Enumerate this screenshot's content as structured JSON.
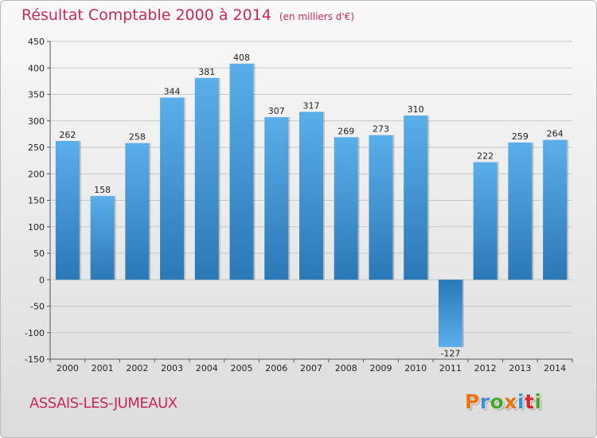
{
  "title": "Résultat Comptable 2000 à 2014",
  "subtitle": "(en milliers d'€)",
  "commune": "ASSAIS-LES-JUMEAUX",
  "brand": "Proxiti",
  "colors": {
    "title": "#c8285a",
    "bar_light": "#5aaee9",
    "bar_dark": "#2b78b6",
    "grid": "#c6c6c6"
  },
  "chart_data": {
    "type": "bar",
    "title": "Résultat Comptable 2000 à 2014",
    "subtitle": "(en milliers d'€)",
    "xlabel": "",
    "ylabel": "",
    "categories": [
      "2000",
      "2001",
      "2002",
      "2003",
      "2004",
      "2005",
      "2006",
      "2007",
      "2008",
      "2009",
      "2010",
      "2011",
      "2012",
      "2013",
      "2014"
    ],
    "values": [
      262,
      158,
      258,
      344,
      381,
      408,
      307,
      317,
      269,
      273,
      310,
      -127,
      222,
      259,
      264
    ],
    "ylim": [
      -150,
      450
    ],
    "yticks": [
      -150,
      -100,
      -50,
      0,
      50,
      100,
      150,
      200,
      250,
      300,
      350,
      400,
      450
    ],
    "grid": true
  }
}
